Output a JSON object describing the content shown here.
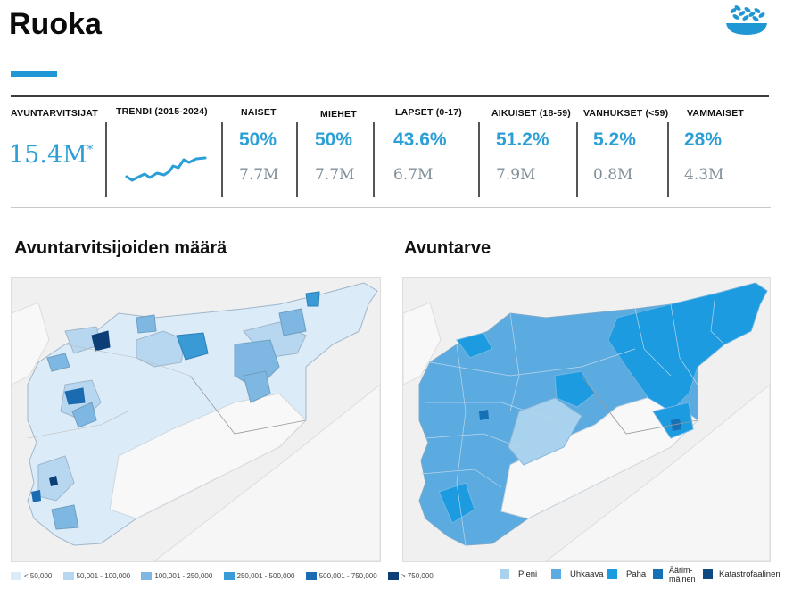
{
  "page": {
    "title": "Ruoka"
  },
  "icon": {
    "name": "food-bowl-icon",
    "color": "#1f97d4"
  },
  "stats": {
    "total": {
      "header": "AVUNTARVITSIJAT",
      "value": "15.4M",
      "mark": "*"
    },
    "trend": {
      "header": "TRENDI (2015-2024)"
    },
    "women": {
      "header": "NAISET",
      "pct": "50%",
      "num": "7.7M"
    },
    "men": {
      "header": "MIEHET",
      "pct": "50%",
      "num": "7.7M"
    },
    "children": {
      "header": "LAPSET (0-17)",
      "pct": "43.6%",
      "num": "6.7M"
    },
    "adults": {
      "header": "AIKUISET (18-59)",
      "pct": "51.2%",
      "num": "7.9M"
    },
    "elderly": {
      "header": "VANHUKSET (<59)",
      "pct": "5.2%",
      "num": "0.8M"
    },
    "disabled": {
      "header": "VAMMAISET",
      "pct": "28%",
      "num": "4.3M"
    }
  },
  "maps": {
    "left": {
      "title": "Avuntarvitsijoiden määrä",
      "legend": [
        {
          "label": "< 50,000",
          "color": "#dcebf8"
        },
        {
          "label": "50,001 - 100,000",
          "color": "#b7d7f0"
        },
        {
          "label": "100,001 - 250,000",
          "color": "#7fb7e3"
        },
        {
          "label": "250,001 - 500,000",
          "color": "#3a9ad6"
        },
        {
          "label": "500,001 - 750,000",
          "color": "#1a6bb0"
        },
        {
          "label": "> 750,000",
          "color": "#0c3f78"
        }
      ]
    },
    "right": {
      "title": "Avuntarve",
      "legend": [
        {
          "label": "Pieni",
          "color": "#a9d2ef"
        },
        {
          "label": "Uhkaava",
          "color": "#5cabe0"
        },
        {
          "label": "Paha",
          "color": "#1d9be0"
        },
        {
          "label": "Äärim-\nmäinen",
          "color": "#1670b5"
        },
        {
          "label": "Katastrofaalinen",
          "color": "#0d4a82"
        }
      ]
    }
  },
  "colors": {
    "accent": "#1f97d4",
    "map_background": "#f0f0f0",
    "neutral_land": "#f7f7f7"
  }
}
